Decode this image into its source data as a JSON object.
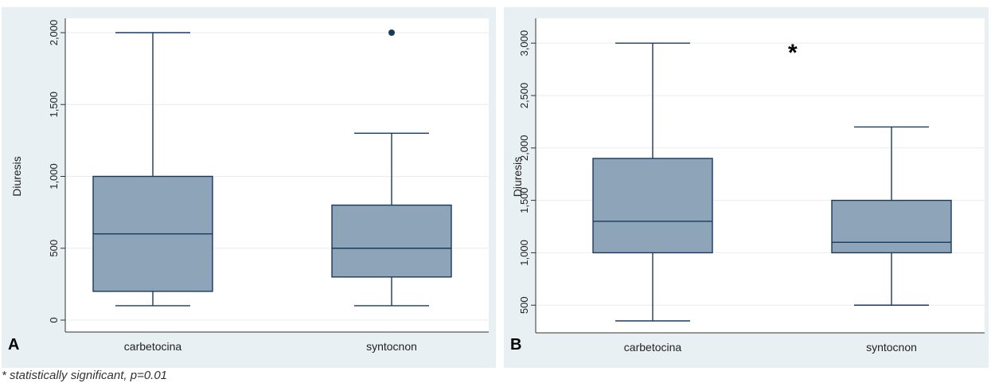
{
  "chart_data": [
    {
      "type": "box",
      "panel_label": "A",
      "ylabel": "Diuresis",
      "xlabel": "",
      "ylim": [
        0,
        2000
      ],
      "yticks": [
        0,
        500,
        1000,
        1500,
        2000
      ],
      "ytick_labels": [
        "0",
        "500",
        "1,000",
        "1,500",
        "2,000"
      ],
      "grid": true,
      "categories": [
        "carbetocina",
        "syntocnon"
      ],
      "boxes": [
        {
          "min": 100,
          "q1": 200,
          "median": 600,
          "q3": 1000,
          "max": 2000,
          "outliers": []
        },
        {
          "min": 100,
          "q1": 300,
          "median": 500,
          "q3": 800,
          "max": 1300,
          "outliers": [
            2000
          ]
        }
      ],
      "annotation": ""
    },
    {
      "type": "box",
      "panel_label": "B",
      "ylabel": "Diuresis",
      "xlabel": "",
      "ylim": [
        350,
        3100
      ],
      "yticks": [
        500,
        1000,
        1500,
        2000,
        2500,
        3000
      ],
      "ytick_labels": [
        "500",
        "1,000",
        "1,500",
        "2,000",
        "2,500",
        "3,000"
      ],
      "grid": true,
      "categories": [
        "carbetocina",
        "syntocnon"
      ],
      "boxes": [
        {
          "min": 350,
          "q1": 1000,
          "median": 1300,
          "q3": 1900,
          "max": 3000,
          "outliers": []
        },
        {
          "min": 500,
          "q1": 1000,
          "median": 1100,
          "q3": 1500,
          "max": 2200,
          "outliers": []
        }
      ],
      "annotation": "*"
    }
  ],
  "colors": {
    "panel_bg": "#e9f0f3",
    "plot_bg": "#ffffff",
    "box_fill": "#8ea4b8",
    "box_stroke": "#1a3a5c",
    "grid": "#e6edf1",
    "axis": "#333333"
  },
  "footnote": "* statistically significant, p=0.01"
}
